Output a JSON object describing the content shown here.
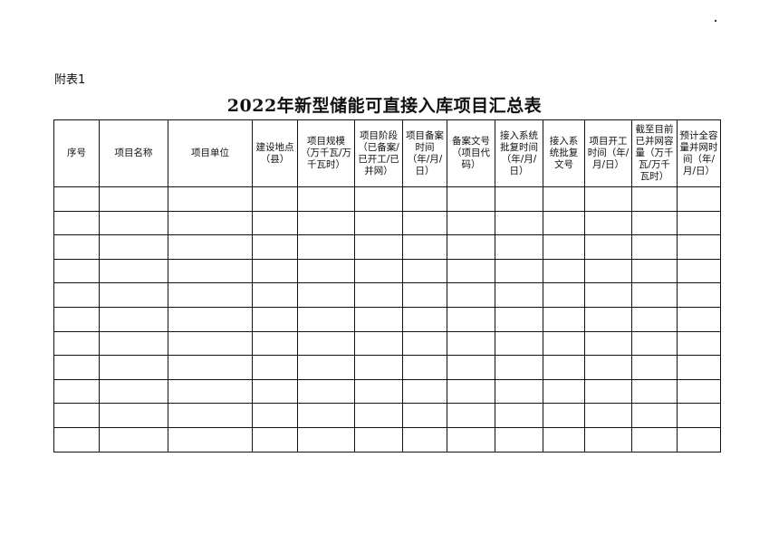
{
  "attachment_label": "附表1",
  "title": "2022年新型储能可直接入库项目汇总表",
  "table": {
    "columns": [
      {
        "label": "序号",
        "lines": [
          "序号"
        ]
      },
      {
        "label": "项目名称",
        "lines": [
          "项目名称"
        ]
      },
      {
        "label": "项目单位",
        "lines": [
          "项目单位"
        ]
      },
      {
        "label": "建设地点（县）",
        "lines": [
          "建设地点",
          "（县）"
        ]
      },
      {
        "label": "项目规模（万千瓦/万千瓦时）",
        "lines": [
          "项目规模",
          "（万千瓦/",
          "万千瓦时）"
        ]
      },
      {
        "label": "项目阶段（已备案/已开工/已并网）",
        "lines": [
          "项目阶段",
          "（已备案",
          "/已开工/",
          "已并网）"
        ]
      },
      {
        "label": "项目备案时间（年/月/日）",
        "lines": [
          "项目备案",
          "时间（年",
          "/月/日）"
        ]
      },
      {
        "label": "备案文号（项目代码）",
        "lines": [
          "备案文号",
          "（项目代",
          "码）"
        ]
      },
      {
        "label": "接入系统批复时间（年/月/日）",
        "lines": [
          "接入系统",
          "批复时间",
          "（年/月/",
          "日）"
        ]
      },
      {
        "label": "接入系统批复文号",
        "lines": [
          "接入系",
          "统批复",
          "文号"
        ]
      },
      {
        "label": "项目开工时间（年/月/日）",
        "lines": [
          "项目开工",
          "时间",
          "（年/月/",
          "日）"
        ]
      },
      {
        "label": "截至目前已并网容量（万千瓦/万千瓦时）",
        "lines": [
          "截至目前",
          "已并网容",
          "量（万千",
          "瓦/万千瓦",
          "时）"
        ]
      },
      {
        "label": "预计全容量并网时间（年/月/日）",
        "lines": [
          "预计全",
          "容量并",
          "网时间",
          "（年/月",
          "/日）"
        ]
      }
    ],
    "row_count": 11,
    "rows": []
  }
}
